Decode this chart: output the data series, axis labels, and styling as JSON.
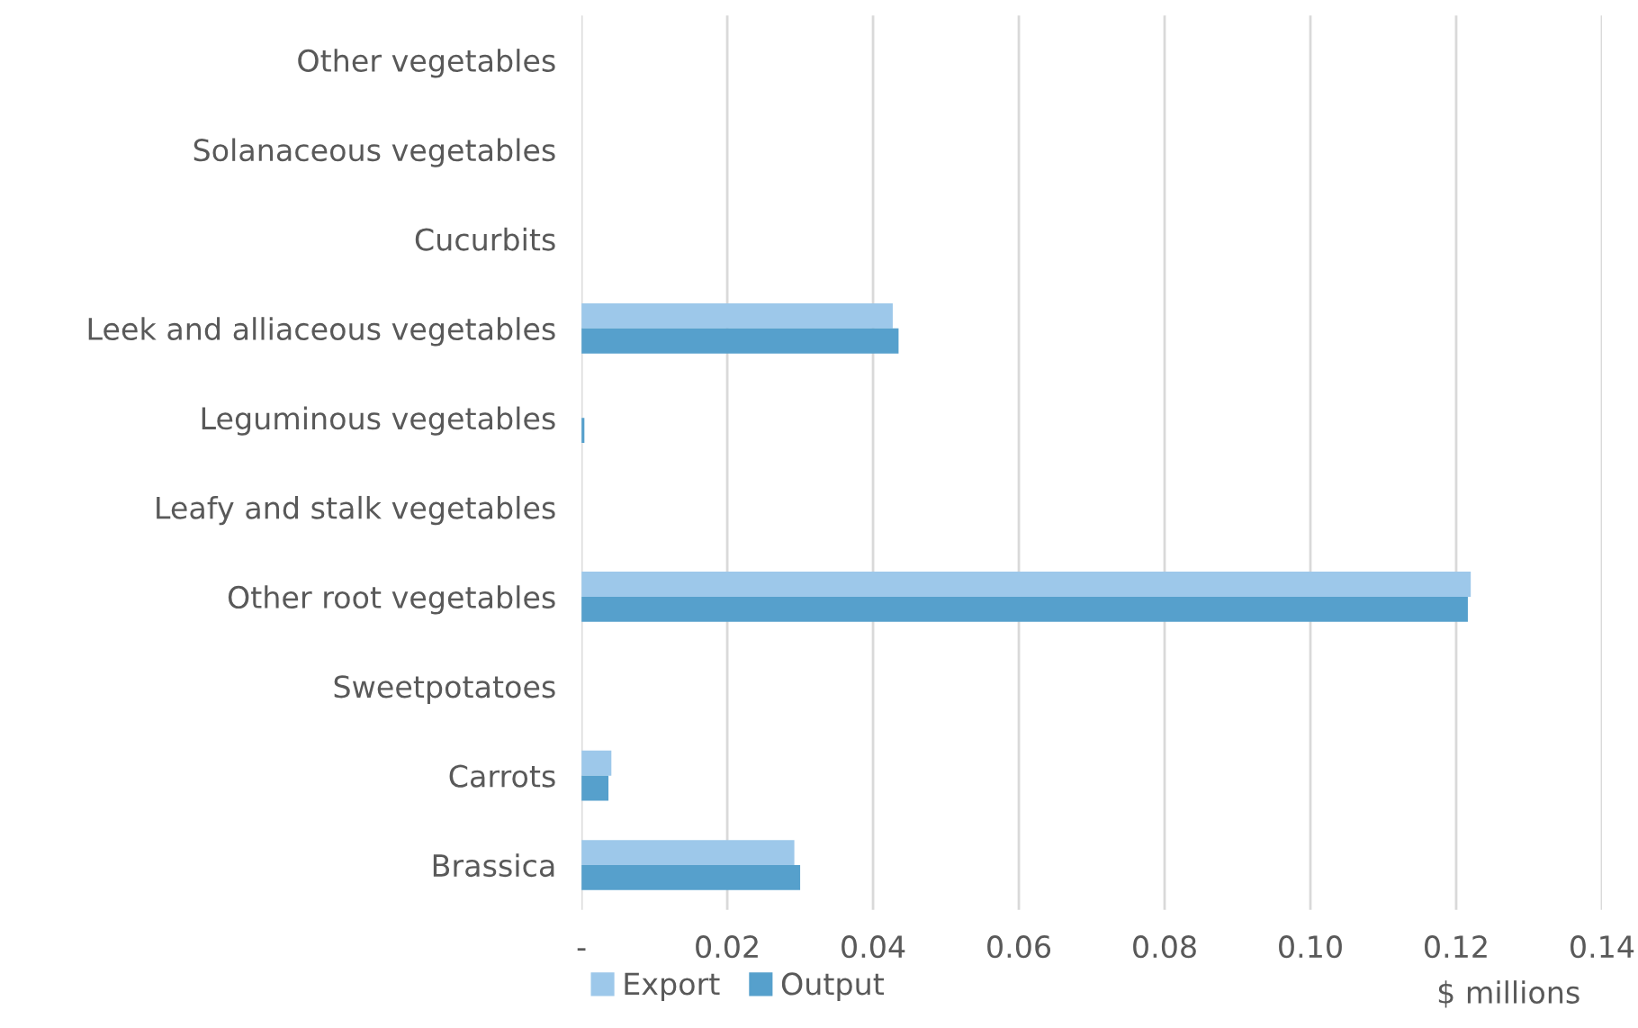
{
  "chart_data": {
    "type": "bar",
    "orientation": "horizontal",
    "xlabel": "$ millions",
    "categories": [
      "Other vegetables",
      "Solanaceous vegetables",
      "Cucurbits",
      "Leek and alliaceous vegetables",
      "Leguminous vegetables",
      "Leafy and stalk vegetables",
      "Other root vegetables",
      "Sweetpotatoes",
      "Carrots",
      "Brassica"
    ],
    "series": [
      {
        "name": "Export",
        "color": "#9dc8ea",
        "values": [
          0,
          0,
          0,
          0.0427,
          null,
          0,
          0.122,
          0,
          0.0041,
          0.0292
        ]
      },
      {
        "name": "Output",
        "color": "#56a0cc",
        "values": [
          0,
          0,
          0,
          0.0435,
          0.0004,
          0,
          0.1216,
          0,
          0.0037,
          0.03
        ]
      }
    ],
    "xlim": [
      0,
      0.14
    ],
    "xticks": [
      {
        "value": 0,
        "label": "-"
      },
      {
        "value": 0.02,
        "label": "0.02"
      },
      {
        "value": 0.04,
        "label": "0.04"
      },
      {
        "value": 0.06,
        "label": "0.06"
      },
      {
        "value": 0.08,
        "label": "0.08"
      },
      {
        "value": 0.1,
        "label": "0.10"
      },
      {
        "value": 0.12,
        "label": "0.12"
      },
      {
        "value": 0.14,
        "label": "0.14"
      }
    ],
    "grid": "x",
    "legend": "bottom"
  }
}
